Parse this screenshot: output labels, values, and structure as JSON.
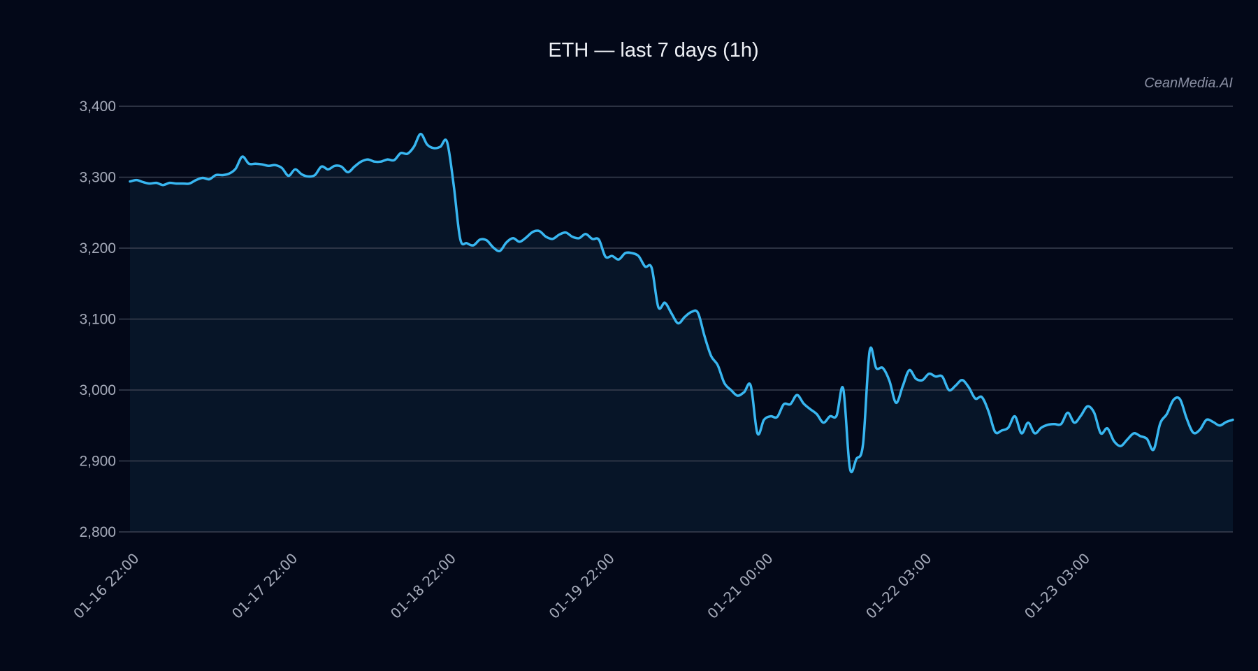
{
  "header": {
    "title": "ETH — last 7 days (1h)",
    "watermark": "CeanMedia.AI"
  },
  "colors": {
    "background": "#030818",
    "plot_fill": "#071528",
    "line": "#38b6f0",
    "grid": "#3a4050",
    "tick_text": "#a6abba",
    "title_text": "#eef0f5"
  },
  "chart_data": {
    "type": "area",
    "title": "ETH — last 7 days (1h)",
    "xlabel": "",
    "ylabel": "",
    "ylim": [
      2800,
      3400
    ],
    "yticks": [
      2800,
      2900,
      3000,
      3100,
      3200,
      3300,
      3400
    ],
    "ytick_labels": [
      "2,800",
      "2,900",
      "3,000",
      "3,100",
      "3,200",
      "3,300",
      "3,400"
    ],
    "grid": true,
    "legend": null,
    "x_tick_labels": [
      "01-16 22:00",
      "01-17 22:00",
      "01-18 22:00",
      "01-19 22:00",
      "01-21 00:00",
      "01-22 03:00",
      "01-23 03:00"
    ],
    "x_tick_indices": [
      0,
      24,
      48,
      72,
      96,
      120,
      144
    ],
    "series": [
      {
        "name": "ETH",
        "values": [
          3294,
          3296,
          3293,
          3291,
          3292,
          3289,
          3292,
          3291,
          3291,
          3291,
          3296,
          3299,
          3297,
          3303,
          3303,
          3305,
          3312,
          3329,
          3319,
          3319,
          3318,
          3316,
          3317,
          3313,
          3302,
          3311,
          3304,
          3301,
          3303,
          3315,
          3311,
          3316,
          3315,
          3307,
          3315,
          3322,
          3325,
          3322,
          3322,
          3325,
          3324,
          3334,
          3333,
          3343,
          3361,
          3346,
          3341,
          3343,
          3350,
          3290,
          3213,
          3207,
          3204,
          3212,
          3211,
          3201,
          3196,
          3208,
          3214,
          3209,
          3215,
          3223,
          3224,
          3216,
          3213,
          3219,
          3222,
          3216,
          3214,
          3220,
          3213,
          3212,
          3188,
          3189,
          3184,
          3193,
          3193,
          3189,
          3174,
          3172,
          3117,
          3123,
          3108,
          3094,
          3103,
          3110,
          3109,
          3076,
          3048,
          3035,
          3010,
          3000,
          2992,
          2997,
          3006,
          2939,
          2958,
          2963,
          2962,
          2980,
          2980,
          2993,
          2981,
          2973,
          2966,
          2954,
          2963,
          2964,
          3002,
          2890,
          2903,
          2924,
          3055,
          3031,
          3031,
          3013,
          2982,
          3005,
          3028,
          3016,
          3014,
          3023,
          3019,
          3019,
          3000,
          3006,
          3014,
          3004,
          2988,
          2990,
          2970,
          2941,
          2943,
          2947,
          2963,
          2939,
          2954,
          2939,
          2947,
          2951,
          2952,
          2952,
          2968,
          2954,
          2964,
          2977,
          2968,
          2939,
          2946,
          2928,
          2921,
          2930,
          2939,
          2935,
          2931,
          2916,
          2953,
          2966,
          2986,
          2987,
          2960,
          2940,
          2944,
          2958,
          2955,
          2950,
          2955,
          2958
        ]
      }
    ]
  }
}
